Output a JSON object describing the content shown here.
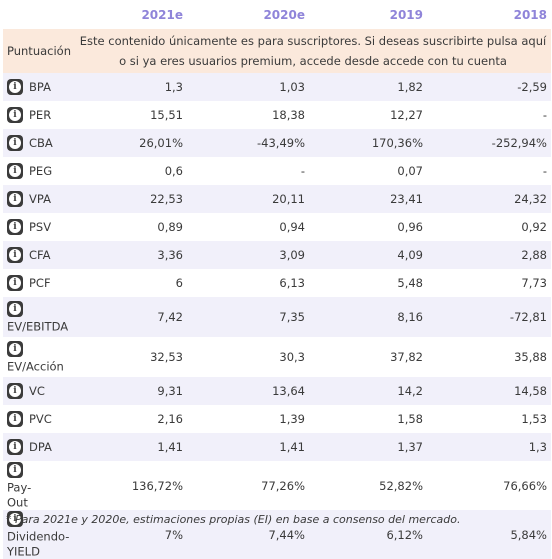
{
  "header": {
    "columns": [
      "",
      "2021e",
      "2020e",
      "2019",
      "2018"
    ]
  },
  "score_row": {
    "label": "Puntuación",
    "notice": "Este contenido únicamente es para suscriptores. Si deseas suscribirte pulsa aquí o si ya eres usuarios premium, accede desde accede con tu cuenta"
  },
  "rows": [
    {
      "label": "BPA",
      "values": [
        "1,3",
        "1,03",
        "1,82",
        "-2,59"
      ]
    },
    {
      "label": "PER",
      "values": [
        "15,51",
        "18,38",
        "12,27",
        "-"
      ]
    },
    {
      "label": "CBA",
      "values": [
        "26,01%",
        "-43,49%",
        "170,36%",
        "-252,94%"
      ]
    },
    {
      "label": "PEG",
      "values": [
        "0,6",
        "-",
        "0,07",
        "-"
      ]
    },
    {
      "label": "VPA",
      "values": [
        "22,53",
        "20,11",
        "23,41",
        "24,32"
      ]
    },
    {
      "label": "PSV",
      "values": [
        "0,89",
        "0,94",
        "0,96",
        "0,92"
      ]
    },
    {
      "label": "CFA",
      "values": [
        "3,36",
        "3,09",
        "4,09",
        "2,88"
      ]
    },
    {
      "label": "PCF",
      "values": [
        "6",
        "6,13",
        "5,48",
        "7,73"
      ]
    },
    {
      "label": "EV/EBITDA",
      "values": [
        "7,42",
        "7,35",
        "8,16",
        "-72,81"
      ]
    },
    {
      "label": "EV/Acción",
      "values": [
        "32,53",
        "30,3",
        "37,82",
        "35,88"
      ]
    },
    {
      "label": "VC",
      "values": [
        "9,31",
        "13,64",
        "14,2",
        "14,58"
      ]
    },
    {
      "label": "PVC",
      "values": [
        "2,16",
        "1,39",
        "1,58",
        "1,53"
      ]
    },
    {
      "label": "DPA",
      "values": [
        "1,41",
        "1,41",
        "1,37",
        "1,3"
      ]
    },
    {
      "label_lines": [
        "Pay-",
        "Out"
      ],
      "values": [
        "136,72%",
        "77,26%",
        "52,82%",
        "76,66%"
      ]
    },
    {
      "label_lines": [
        "Dividendo-",
        "YIELD"
      ],
      "values": [
        "7%",
        "7,44%",
        "6,12%",
        "5,84%"
      ]
    }
  ],
  "footnote": "* Para 2021e y 2020e, estimaciones propias (EI) en base a consenso del mercado.",
  "icons": {
    "row_info": "info-icon"
  },
  "colors": {
    "header_text": "#8f84d9",
    "row_stripe": "#f1f0fa",
    "score_bg": "#fbe9dc"
  }
}
